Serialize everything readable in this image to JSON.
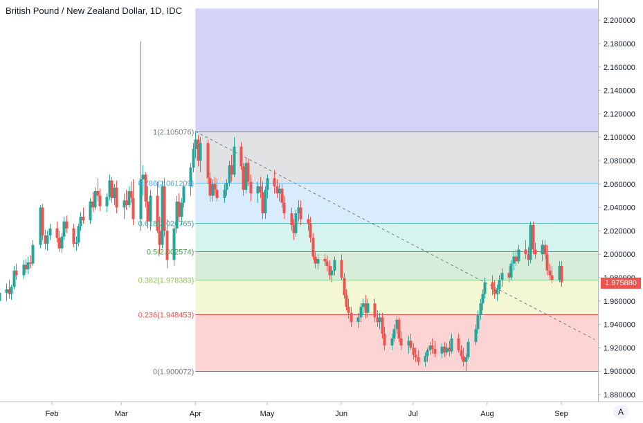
{
  "header": {
    "title": "British Pound / New Zealand Dollar, 1D, IDC",
    "auto_label": "A"
  },
  "price_axis": {
    "ticks": [
      "2.200000",
      "2.180000",
      "2.160000",
      "2.140000",
      "2.120000",
      "2.100000",
      "2.080000",
      "2.060000",
      "2.040000",
      "2.020000",
      "2.000000",
      "1.980000",
      "1.960000",
      "1.940000",
      "1.920000",
      "1.900000",
      "1.880000"
    ],
    "last_price": "1.975880"
  },
  "time_axis": {
    "labels": [
      "Feb",
      "Mar",
      "Apr",
      "May",
      "Jun",
      "Jul",
      "Aug",
      "Sep"
    ]
  },
  "colors": {
    "up": "#26a69a",
    "down": "#ef5350",
    "grid": "#f0f3fa",
    "axis_line": "#b2b5be"
  },
  "chart_data": {
    "type": "candlestick",
    "title": "British Pound / New Zealand Dollar, 1D, IDC",
    "ylim": [
      1.87,
      2.21
    ],
    "x_range": [
      "2020-01-08",
      "2020-09-15"
    ],
    "grid": false,
    "fibonacci_retracement": {
      "start_date": "2020-04-01",
      "levels": [
        {
          "ratio": "1",
          "price": 2.105076,
          "label": "1(2.105076)",
          "line": "#787b86",
          "fill": "rgba(120,123,134,0.22)",
          "text": "#787b86"
        },
        {
          "ratio": "0.786",
          "price": 2.061209,
          "label": "0.786(2.061209)",
          "line": "#64b5f6",
          "fill": "rgba(100,181,246,0.25)",
          "text": "#42a5f5"
        },
        {
          "ratio": "0.618",
          "price": 2.026765,
          "label": "0.618(2.026765)",
          "line": "#4db6ac",
          "fill": "rgba(38,198,166,0.2)",
          "text": "#26a69a"
        },
        {
          "ratio": "0.5",
          "price": 2.002574,
          "label": "0.5(2.002574)",
          "line": "#4caf50",
          "fill": "rgba(76,175,80,0.22)",
          "text": "#43a047"
        },
        {
          "ratio": "0.382",
          "price": 1.978383,
          "label": "0.382(1.978383)",
          "line": "#81c784",
          "fill": "rgba(205,220,57,0.22)",
          "text": "#8bc34a"
        },
        {
          "ratio": "0.236",
          "price": 1.948453,
          "label": "0.236(1.948453)",
          "line": "#ef5350",
          "fill": "rgba(239,83,80,0.25)",
          "text": "#ef5350"
        },
        {
          "ratio": "0",
          "price": 1.900072,
          "label": "0(1.900072)",
          "line": "#787b86",
          "fill": null,
          "text": "#787b86"
        }
      ],
      "extension_fill": {
        "top": 2.21,
        "bottom": 2.105076,
        "color": "rgba(92,92,230,0.27)"
      }
    },
    "trend_line": {
      "from": [
        "2020-04-01",
        2.105
      ],
      "to": [
        "2020-09-15",
        1.927
      ]
    },
    "candles": [
      [
        "2020-01-08",
        1.978,
        1.985,
        1.957,
        1.968
      ],
      [
        "2020-01-09",
        1.968,
        1.975,
        1.955,
        1.96
      ],
      [
        "2020-01-10",
        1.96,
        1.972,
        1.958,
        1.967
      ],
      [
        "2020-01-13",
        1.967,
        1.975,
        1.96,
        1.97
      ],
      [
        "2020-01-14",
        1.97,
        1.978,
        1.962,
        1.966
      ],
      [
        "2020-01-15",
        1.966,
        1.974,
        1.961,
        1.972
      ],
      [
        "2020-01-16",
        1.972,
        1.99,
        1.97,
        1.986
      ],
      [
        "2020-01-17",
        1.986,
        1.992,
        1.978,
        1.982
      ],
      [
        "2020-01-20",
        1.982,
        1.995,
        1.979,
        1.991
      ],
      [
        "2020-01-21",
        1.991,
        1.996,
        1.984,
        1.987
      ],
      [
        "2020-01-22",
        1.987,
        1.998,
        1.983,
        1.993
      ],
      [
        "2020-01-23",
        1.993,
        1.999,
        1.988,
        1.992
      ],
      [
        "2020-01-24",
        1.992,
        2.012,
        1.99,
        2.008
      ],
      [
        "2020-01-27",
        2.008,
        2.042,
        2.005,
        2.04
      ],
      [
        "2020-01-28",
        2.04,
        2.043,
        2.012,
        2.016
      ],
      [
        "2020-01-29",
        2.016,
        2.021,
        2.004,
        2.009
      ],
      [
        "2020-01-30",
        2.009,
        2.02,
        2.003,
        2.016
      ],
      [
        "2020-01-31",
        2.016,
        2.026,
        2.012,
        2.022
      ],
      [
        "2020-02-03",
        2.022,
        2.028,
        2.01,
        2.014
      ],
      [
        "2020-02-04",
        2.014,
        2.02,
        2.002,
        2.005
      ],
      [
        "2020-02-05",
        2.005,
        2.018,
        2.001,
        2.015
      ],
      [
        "2020-02-06",
        2.015,
        2.032,
        2.012,
        2.028
      ],
      [
        "2020-02-07",
        2.028,
        2.033,
        2.018,
        2.022
      ],
      [
        "2020-02-10",
        2.022,
        2.026,
        2.006,
        2.009
      ],
      [
        "2020-02-11",
        2.009,
        2.015,
        2.003,
        2.01
      ],
      [
        "2020-02-12",
        2.01,
        2.026,
        2.007,
        2.024
      ],
      [
        "2020-02-13",
        2.024,
        2.036,
        2.02,
        2.032
      ],
      [
        "2020-02-14",
        2.032,
        2.04,
        2.026,
        2.029
      ],
      [
        "2020-02-17",
        2.029,
        2.048,
        2.026,
        2.045
      ],
      [
        "2020-02-18",
        2.045,
        2.053,
        2.036,
        2.04
      ],
      [
        "2020-02-19",
        2.04,
        2.057,
        2.038,
        2.054
      ],
      [
        "2020-02-20",
        2.054,
        2.065,
        2.045,
        2.05
      ],
      [
        "2020-02-21",
        2.05,
        2.056,
        2.037,
        2.041
      ],
      [
        "2020-02-24",
        2.041,
        2.052,
        2.036,
        2.049
      ],
      [
        "2020-02-25",
        2.049,
        2.068,
        2.046,
        2.063
      ],
      [
        "2020-02-26",
        2.063,
        2.066,
        2.044,
        2.048
      ],
      [
        "2020-02-27",
        2.048,
        2.06,
        2.042,
        2.057
      ],
      [
        "2020-02-28",
        2.057,
        2.063,
        2.035,
        2.04
      ],
      [
        "2020-03-02",
        2.04,
        2.052,
        2.03,
        2.046
      ],
      [
        "2020-03-03",
        2.046,
        2.055,
        2.038,
        2.042
      ],
      [
        "2020-03-04",
        2.042,
        2.058,
        2.04,
        2.054
      ],
      [
        "2020-03-05",
        2.054,
        2.062,
        2.044,
        2.048
      ],
      [
        "2020-03-06",
        2.048,
        2.064,
        2.025,
        2.03
      ],
      [
        "2020-03-09",
        2.03,
        2.182,
        2.02,
        2.064
      ],
      [
        "2020-03-10",
        2.064,
        2.076,
        2.05,
        2.068
      ],
      [
        "2020-03-11",
        2.068,
        2.07,
        2.04,
        2.045
      ],
      [
        "2020-03-12",
        2.045,
        2.058,
        2.022,
        2.028
      ],
      [
        "2020-03-13",
        2.028,
        2.055,
        2.02,
        2.05
      ],
      [
        "2020-03-16",
        2.05,
        2.062,
        2.018,
        2.02
      ],
      [
        "2020-03-17",
        2.02,
        2.032,
        2.0,
        2.008
      ],
      [
        "2020-03-18",
        2.008,
        2.062,
        2.005,
        2.058
      ],
      [
        "2020-03-19",
        2.058,
        2.065,
        2.015,
        2.02
      ],
      [
        "2020-03-20",
        2.02,
        2.03,
        1.988,
        1.995
      ],
      [
        "2020-03-23",
        1.995,
        2.025,
        1.99,
        2.022
      ],
      [
        "2020-03-24",
        2.022,
        2.05,
        2.018,
        2.045
      ],
      [
        "2020-03-25",
        2.045,
        2.052,
        2.028,
        2.032
      ],
      [
        "2020-03-26",
        2.032,
        2.048,
        2.025,
        2.044
      ],
      [
        "2020-03-27",
        2.044,
        2.062,
        2.04,
        2.058
      ],
      [
        "2020-03-30",
        2.058,
        2.078,
        2.05,
        2.074
      ],
      [
        "2020-03-31",
        2.074,
        2.095,
        2.07,
        2.09
      ],
      [
        "2020-04-01",
        2.09,
        2.105,
        2.082,
        2.098
      ],
      [
        "2020-04-02",
        2.098,
        2.102,
        2.075,
        2.08
      ],
      [
        "2020-04-03",
        2.08,
        2.1,
        2.07,
        2.095
      ],
      [
        "2020-04-06",
        2.095,
        2.098,
        2.06,
        2.065
      ],
      [
        "2020-04-07",
        2.065,
        2.07,
        2.045,
        2.05
      ],
      [
        "2020-04-08",
        2.05,
        2.064,
        2.045,
        2.06
      ],
      [
        "2020-04-09",
        2.06,
        2.066,
        2.05,
        2.055
      ],
      [
        "2020-04-10",
        2.055,
        2.065,
        2.045,
        2.048
      ],
      [
        "2020-04-13",
        2.048,
        2.06,
        2.044,
        2.055
      ],
      [
        "2020-04-14",
        2.055,
        2.064,
        2.05,
        2.061
      ],
      [
        "2020-04-15",
        2.061,
        2.08,
        2.058,
        2.076
      ],
      [
        "2020-04-16",
        2.076,
        2.085,
        2.062,
        2.068
      ],
      [
        "2020-04-17",
        2.068,
        2.1,
        2.066,
        2.092
      ],
      [
        "2020-04-20",
        2.092,
        2.096,
        2.072,
        2.075
      ],
      [
        "2020-04-21",
        2.075,
        2.078,
        2.05,
        2.055
      ],
      [
        "2020-04-22",
        2.055,
        2.082,
        2.052,
        2.078
      ],
      [
        "2020-04-23",
        2.078,
        2.082,
        2.058,
        2.062
      ],
      [
        "2020-04-24",
        2.062,
        2.068,
        2.045,
        2.052
      ],
      [
        "2020-04-27",
        2.052,
        2.062,
        2.044,
        2.058
      ],
      [
        "2020-04-28",
        2.058,
        2.066,
        2.048,
        2.053
      ],
      [
        "2020-04-29",
        2.053,
        2.062,
        2.03,
        2.035
      ],
      [
        "2020-04-30",
        2.035,
        2.058,
        2.03,
        2.055
      ],
      [
        "2020-05-01",
        2.055,
        2.068,
        2.048,
        2.065
      ],
      [
        "2020-05-04",
        2.065,
        2.072,
        2.052,
        2.058
      ],
      [
        "2020-05-05",
        2.058,
        2.064,
        2.048,
        2.052
      ],
      [
        "2020-05-06",
        2.052,
        2.06,
        2.045,
        2.056
      ],
      [
        "2020-05-07",
        2.056,
        2.06,
        2.04,
        2.044
      ],
      [
        "2020-05-08",
        2.044,
        2.05,
        2.03,
        2.035
      ],
      [
        "2020-05-11",
        2.035,
        2.04,
        2.02,
        2.025
      ],
      [
        "2020-05-12",
        2.025,
        2.03,
        2.012,
        2.018
      ],
      [
        "2020-05-13",
        2.018,
        2.038,
        2.015,
        2.035
      ],
      [
        "2020-05-14",
        2.035,
        2.046,
        2.028,
        2.04
      ],
      [
        "2020-05-15",
        2.04,
        2.046,
        2.025,
        2.03
      ],
      [
        "2020-05-18",
        2.03,
        2.034,
        2.02,
        2.026
      ],
      [
        "2020-05-19",
        2.026,
        2.032,
        2.01,
        2.014
      ],
      [
        "2020-05-20",
        2.014,
        2.018,
        1.995,
        1.998
      ],
      [
        "2020-05-21",
        1.998,
        2.002,
        1.988,
        1.992
      ],
      [
        "2020-05-22",
        1.992,
        2.0,
        1.987,
        1.996
      ],
      [
        "2020-05-25",
        1.996,
        2.0,
        1.99,
        1.994
      ],
      [
        "2020-05-26",
        1.994,
        1.999,
        1.985,
        1.99
      ],
      [
        "2020-05-27",
        1.99,
        1.995,
        1.978,
        1.982
      ],
      [
        "2020-05-28",
        1.982,
        1.99,
        1.976,
        1.986
      ],
      [
        "2020-05-29",
        1.986,
        1.998,
        1.982,
        1.995
      ],
      [
        "2020-06-01",
        1.995,
        2.0,
        1.978,
        1.98
      ],
      [
        "2020-06-02",
        1.98,
        1.984,
        1.962,
        1.965
      ],
      [
        "2020-06-03",
        1.965,
        1.97,
        1.952,
        1.955
      ],
      [
        "2020-06-04",
        1.955,
        1.962,
        1.945,
        1.95
      ],
      [
        "2020-06-05",
        1.95,
        1.955,
        1.938,
        1.942
      ],
      [
        "2020-06-08",
        1.942,
        1.95,
        1.937,
        1.946
      ],
      [
        "2020-06-09",
        1.946,
        1.958,
        1.942,
        1.955
      ],
      [
        "2020-06-10",
        1.955,
        1.962,
        1.948,
        1.958
      ],
      [
        "2020-06-11",
        1.958,
        1.965,
        1.945,
        1.95
      ],
      [
        "2020-06-12",
        1.95,
        1.962,
        1.946,
        1.958
      ],
      [
        "2020-06-15",
        1.958,
        1.962,
        1.942,
        1.946
      ],
      [
        "2020-06-16",
        1.946,
        1.952,
        1.938,
        1.942
      ],
      [
        "2020-06-17",
        1.942,
        1.95,
        1.936,
        1.946
      ],
      [
        "2020-06-18",
        1.946,
        1.95,
        1.928,
        1.932
      ],
      [
        "2020-06-19",
        1.932,
        1.938,
        1.918,
        1.922
      ],
      [
        "2020-06-22",
        1.922,
        1.932,
        1.918,
        1.928
      ],
      [
        "2020-06-23",
        1.928,
        1.94,
        1.925,
        1.936
      ],
      [
        "2020-06-24",
        1.936,
        1.947,
        1.932,
        1.944
      ],
      [
        "2020-06-25",
        1.944,
        1.946,
        1.925,
        1.928
      ],
      [
        "2020-06-26",
        1.928,
        1.934,
        1.918,
        1.922
      ],
      [
        "2020-06-29",
        1.922,
        1.93,
        1.915,
        1.926
      ],
      [
        "2020-06-30",
        1.926,
        1.932,
        1.918,
        1.92
      ],
      [
        "2020-07-01",
        1.92,
        1.924,
        1.91,
        1.914
      ],
      [
        "2020-07-02",
        1.914,
        1.92,
        1.908,
        1.912
      ],
      [
        "2020-07-03",
        1.912,
        1.918,
        1.905,
        1.908
      ],
      [
        "2020-07-06",
        1.908,
        1.916,
        1.904,
        1.913
      ],
      [
        "2020-07-07",
        1.913,
        1.92,
        1.908,
        1.918
      ],
      [
        "2020-07-08",
        1.918,
        1.925,
        1.914,
        1.922
      ],
      [
        "2020-07-09",
        1.922,
        1.928,
        1.915,
        1.919
      ],
      [
        "2020-07-10",
        1.919,
        1.926,
        1.912,
        1.915
      ],
      [
        "2020-07-13",
        1.915,
        1.924,
        1.911,
        1.921
      ],
      [
        "2020-07-14",
        1.921,
        1.925,
        1.912,
        1.916
      ],
      [
        "2020-07-15",
        1.916,
        1.924,
        1.914,
        1.92
      ],
      [
        "2020-07-16",
        1.92,
        1.926,
        1.913,
        1.917
      ],
      [
        "2020-07-17",
        1.917,
        1.932,
        1.915,
        1.928
      ],
      [
        "2020-07-20",
        1.928,
        1.932,
        1.916,
        1.918
      ],
      [
        "2020-07-21",
        1.918,
        1.922,
        1.91,
        1.913
      ],
      [
        "2020-07-22",
        1.913,
        1.92,
        1.904,
        1.908
      ],
      [
        "2020-07-23",
        1.908,
        1.915,
        1.9,
        1.912
      ],
      [
        "2020-07-24",
        1.912,
        1.928,
        1.91,
        1.925
      ],
      [
        "2020-07-27",
        1.925,
        1.94,
        1.922,
        1.936
      ],
      [
        "2020-07-28",
        1.936,
        1.952,
        1.932,
        1.948
      ],
      [
        "2020-07-29",
        1.948,
        1.962,
        1.944,
        1.958
      ],
      [
        "2020-07-30",
        1.958,
        1.97,
        1.952,
        1.966
      ],
      [
        "2020-07-31",
        1.966,
        1.98,
        1.962,
        1.976
      ],
      [
        "2020-08-03",
        1.976,
        1.982,
        1.965,
        1.97
      ],
      [
        "2020-08-04",
        1.97,
        1.978,
        1.962,
        1.966
      ],
      [
        "2020-08-05",
        1.966,
        1.974,
        1.96,
        1.97
      ],
      [
        "2020-08-06",
        1.97,
        1.982,
        1.966,
        1.978
      ],
      [
        "2020-08-07",
        1.978,
        1.988,
        1.972,
        1.984
      ],
      [
        "2020-08-10",
        1.984,
        1.99,
        1.976,
        1.98
      ],
      [
        "2020-08-11",
        1.98,
        1.995,
        1.978,
        1.992
      ],
      [
        "2020-08-12",
        1.992,
        2.002,
        1.986,
        1.998
      ],
      [
        "2020-08-13",
        1.998,
        2.004,
        1.99,
        1.994
      ],
      [
        "2020-08-14",
        1.994,
        2.008,
        1.992,
        2.004
      ],
      [
        "2020-08-17",
        2.004,
        2.012,
        1.996,
        2.0
      ],
      [
        "2020-08-18",
        2.0,
        2.006,
        1.99,
        1.995
      ],
      [
        "2020-08-19",
        1.995,
        2.028,
        1.992,
        2.025
      ],
      [
        "2020-08-20",
        2.025,
        2.028,
        2.0,
        2.004
      ],
      [
        "2020-08-21",
        2.004,
        2.01,
        1.996,
        2.0
      ],
      [
        "2020-08-24",
        2.0,
        2.012,
        1.994,
        2.008
      ],
      [
        "2020-08-25",
        2.008,
        2.012,
        1.996,
        2.0
      ],
      [
        "2020-08-26",
        2.0,
        2.008,
        1.982,
        1.986
      ],
      [
        "2020-08-27",
        1.986,
        1.992,
        1.978,
        1.982
      ],
      [
        "2020-08-28",
        1.982,
        1.99,
        1.975,
        1.978
      ],
      [
        "2020-08-31",
        1.978,
        1.994,
        1.976,
        1.99
      ],
      [
        "2020-09-01",
        1.99,
        1.994,
        1.972,
        1.976
      ]
    ]
  }
}
